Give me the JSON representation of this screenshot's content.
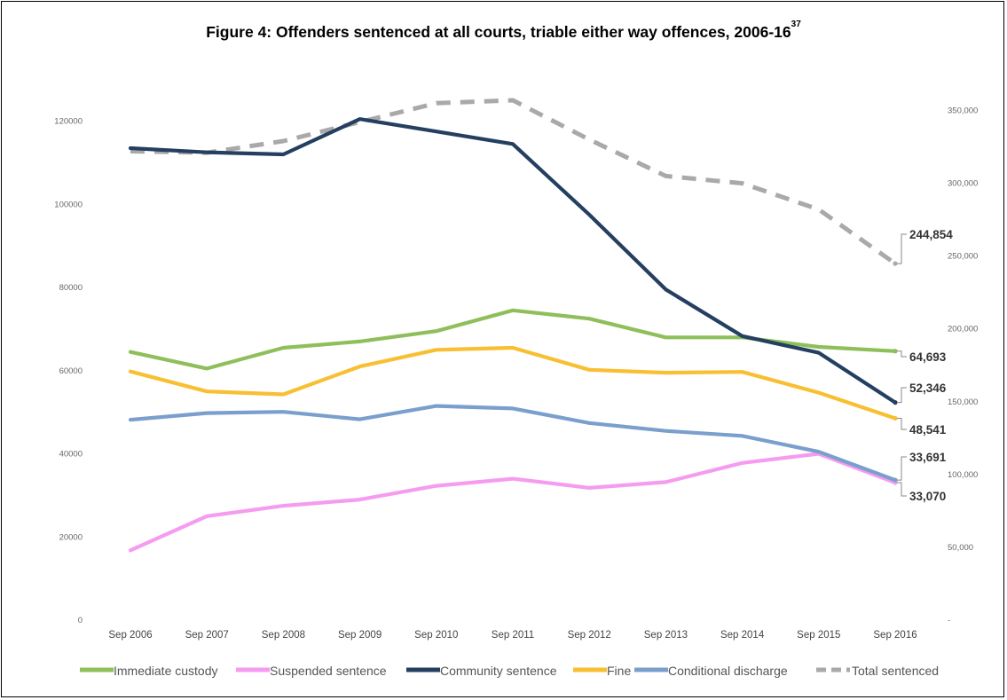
{
  "chart_data": {
    "type": "line",
    "title": "Figure 4: Offenders sentenced at all courts, triable either way offences, 2006-16",
    "title_footnote": "37",
    "categories": [
      "Sep 2006",
      "Sep 2007",
      "Sep 2008",
      "Sep 2009",
      "Sep 2010",
      "Sep 2011",
      "Sep 2012",
      "Sep 2013",
      "Sep 2014",
      "Sep 2015",
      "Sep 2016"
    ],
    "left_axis": {
      "range": [
        0,
        120000
      ],
      "ticks": [
        "0",
        "20000",
        "40000",
        "60000",
        "80000",
        "100000",
        "120000"
      ]
    },
    "right_axis": {
      "range": [
        0,
        350000
      ],
      "ticks": [
        "-",
        "50,000",
        "100,000",
        "150,000",
        "200,000",
        "250,000",
        "300,000",
        "350,000"
      ]
    },
    "legend_position": "bottom",
    "grid": false,
    "series": [
      {
        "name": "Immediate custody",
        "axis": "left",
        "color": "#8ebf5a",
        "dashed": false,
        "values": [
          64500,
          60500,
          65500,
          67000,
          69500,
          74500,
          72500,
          68000,
          68000,
          65700,
          64693
        ],
        "end_label": "64,693"
      },
      {
        "name": "Suspended sentence",
        "axis": "left",
        "color": "#f59cf0",
        "dashed": false,
        "values": [
          16800,
          25000,
          27500,
          29000,
          32300,
          34000,
          31800,
          33200,
          37800,
          40000,
          33070
        ],
        "end_label": "33,070"
      },
      {
        "name": "Community sentence",
        "axis": "left",
        "color": "#243f60",
        "dashed": false,
        "values": [
          113500,
          112500,
          112000,
          120500,
          117500,
          114500,
          97500,
          79500,
          68300,
          64300,
          52346
        ],
        "end_label": "52,346"
      },
      {
        "name": "Fine",
        "axis": "left",
        "color": "#f8bf32",
        "dashed": false,
        "values": [
          59800,
          55000,
          54300,
          61000,
          65000,
          65500,
          60200,
          59500,
          59700,
          54700,
          48541
        ],
        "end_label": "48,541"
      },
      {
        "name": "Conditional discharge",
        "axis": "left",
        "color": "#7b9fcc",
        "dashed": false,
        "values": [
          48200,
          49800,
          50100,
          48300,
          51500,
          50900,
          47400,
          45500,
          44300,
          40500,
          33691
        ],
        "end_label": "33,691"
      },
      {
        "name": "Total sentenced",
        "axis": "right",
        "color": "#a9a9a9",
        "dashed": true,
        "values": [
          322000,
          321000,
          329000,
          342000,
          355000,
          357000,
          330000,
          305000,
          300000,
          282000,
          244854
        ],
        "end_label": "244,854"
      }
    ]
  }
}
